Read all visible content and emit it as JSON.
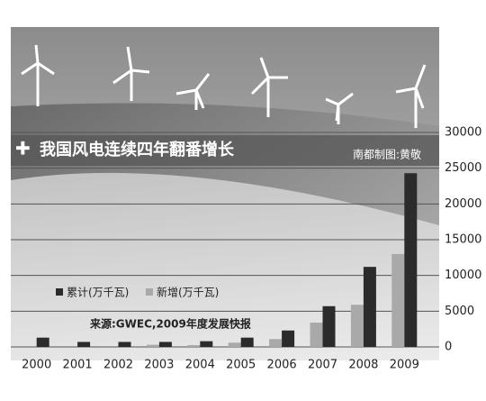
{
  "chart_data": {
    "type": "bar",
    "title": "我国风电连续四年翻番增长",
    "credit": "南都制图:黄敬",
    "source": "来源:GWEC,2009年度发展快报",
    "categories": [
      "2000",
      "2001",
      "2002",
      "2003",
      "2004",
      "2005",
      "2006",
      "2007",
      "2008",
      "2009"
    ],
    "series": [
      {
        "name": "新增(万千瓦)",
        "color": "#a9a9a9",
        "values": [
          null,
          null,
          null,
          300,
          250,
          600,
          1100,
          3400,
          5900,
          13000
        ]
      },
      {
        "name": "累计(万千瓦)",
        "color": "#2b2b2b",
        "values": [
          1300,
          700,
          700,
          700,
          800,
          1300,
          2300,
          5700,
          11200,
          24300
        ]
      }
    ],
    "ylim": [
      0,
      30000
    ],
    "yticks": [
      0,
      5000,
      10000,
      15000,
      20000,
      25000,
      30000
    ],
    "grid": true
  }
}
